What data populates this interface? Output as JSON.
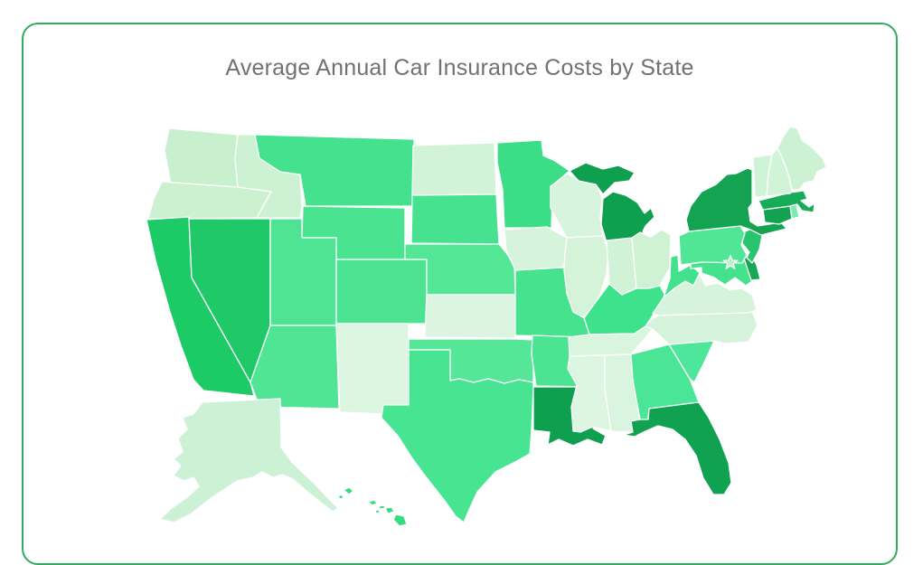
{
  "card": {
    "title": "Average Annual Car Insurance Costs by State"
  },
  "colors": {
    "card_border": "#2fad5d",
    "card_background": "#ffffff",
    "title_color": "#717171",
    "state_border": "#ffffff"
  },
  "chart_data": {
    "type": "heatmap",
    "subtype": "us-choropleth-map",
    "title": "Average Annual Car Insurance Costs by State",
    "region": "United States",
    "legend": "none",
    "values_labeled": false,
    "color_scale": {
      "lightest": "#ddf6e2",
      "darkest": "#0fa04f",
      "encoding": "darker green = higher shade level"
    },
    "dc": {
      "id": "DC",
      "name": "District of Columbia",
      "marker": "star",
      "color": "#bfeccd"
    },
    "states": [
      {
        "id": "WA",
        "name": "Washington",
        "shade_level": 2,
        "color": "#c9f0ce"
      },
      {
        "id": "OR",
        "name": "Oregon",
        "shade_level": 2,
        "color": "#cbf1d0"
      },
      {
        "id": "CA",
        "name": "California",
        "shade_level": 4,
        "color": "#1ccb66"
      },
      {
        "id": "NV",
        "name": "Nevada",
        "shade_level": 4,
        "color": "#1fc967"
      },
      {
        "id": "ID",
        "name": "Idaho",
        "shade_level": 2,
        "color": "#cdf2d3"
      },
      {
        "id": "MT",
        "name": "Montana",
        "shade_level": 3,
        "color": "#44e18e"
      },
      {
        "id": "WY",
        "name": "Wyoming",
        "shade_level": 3,
        "color": "#4ae390"
      },
      {
        "id": "UT",
        "name": "Utah",
        "shade_level": 3,
        "color": "#4ee493"
      },
      {
        "id": "CO",
        "name": "Colorado",
        "shade_level": 3,
        "color": "#4ce492"
      },
      {
        "id": "AZ",
        "name": "Arizona",
        "shade_level": 3,
        "color": "#4fe594"
      },
      {
        "id": "NM",
        "name": "New Mexico",
        "shade_level": 1,
        "color": "#ddf6e2"
      },
      {
        "id": "ND",
        "name": "North Dakota",
        "shade_level": 2,
        "color": "#d2f3d8"
      },
      {
        "id": "SD",
        "name": "South Dakota",
        "shade_level": 3,
        "color": "#47e290"
      },
      {
        "id": "NE",
        "name": "Nebraska",
        "shade_level": 3,
        "color": "#52e695"
      },
      {
        "id": "KS",
        "name": "Kansas",
        "shade_level": 1,
        "color": "#dbf5e0"
      },
      {
        "id": "OK",
        "name": "Oklahoma",
        "shade_level": 3,
        "color": "#55e797"
      },
      {
        "id": "TX",
        "name": "Texas",
        "shade_level": 3,
        "color": "#47e591"
      },
      {
        "id": "MN",
        "name": "Minnesota",
        "shade_level": 3,
        "color": "#3bdd87"
      },
      {
        "id": "IA",
        "name": "Iowa",
        "shade_level": 2,
        "color": "#d5f4db"
      },
      {
        "id": "MO",
        "name": "Missouri",
        "shade_level": 3,
        "color": "#45e38e"
      },
      {
        "id": "AR",
        "name": "Arkansas",
        "shade_level": 3,
        "color": "#4be492"
      },
      {
        "id": "LA",
        "name": "Louisiana",
        "shade_level": 5,
        "color": "#0fa04f"
      },
      {
        "id": "WI",
        "name": "Wisconsin",
        "shade_level": 2,
        "color": "#d7f4dc"
      },
      {
        "id": "IL",
        "name": "Illinois",
        "shade_level": 2,
        "color": "#d4f3d9"
      },
      {
        "id": "MI",
        "name": "Michigan",
        "shade_level": 5,
        "color": "#0fa04f"
      },
      {
        "id": "IN",
        "name": "Indiana",
        "shade_level": 2,
        "color": "#d0f2d6"
      },
      {
        "id": "OH",
        "name": "Ohio",
        "shade_level": 2,
        "color": "#cff2d5"
      },
      {
        "id": "KY",
        "name": "Kentucky",
        "shade_level": 3,
        "color": "#3fe28c"
      },
      {
        "id": "TN",
        "name": "Tennessee",
        "shade_level": 1,
        "color": "#daf5de"
      },
      {
        "id": "MS",
        "name": "Mississippi",
        "shade_level": 1,
        "color": "#dcf6e1"
      },
      {
        "id": "AL",
        "name": "Alabama",
        "shade_level": 1,
        "color": "#d9f5df"
      },
      {
        "id": "GA",
        "name": "Georgia",
        "shade_level": 3,
        "color": "#4ae596"
      },
      {
        "id": "FL",
        "name": "Florida",
        "shade_level": 5,
        "color": "#10a251"
      },
      {
        "id": "SC",
        "name": "South Carolina",
        "shade_level": 3,
        "color": "#4ee69a"
      },
      {
        "id": "NC",
        "name": "North Carolina",
        "shade_level": 2,
        "color": "#d4f3da"
      },
      {
        "id": "VA",
        "name": "Virginia",
        "shade_level": 2,
        "color": "#d6f4dc"
      },
      {
        "id": "WV",
        "name": "West Virginia",
        "shade_level": 3,
        "color": "#41e28b"
      },
      {
        "id": "MD",
        "name": "Maryland",
        "shade_level": 3,
        "color": "#44e28d"
      },
      {
        "id": "DE",
        "name": "Delaware",
        "shade_level": 5,
        "color": "#16a855"
      },
      {
        "id": "NJ",
        "name": "New Jersey",
        "shade_level": 4,
        "color": "#2bc46e"
      },
      {
        "id": "PA",
        "name": "Pennsylvania",
        "shade_level": 3,
        "color": "#50e695"
      },
      {
        "id": "NY",
        "name": "New York",
        "shade_level": 5,
        "color": "#13a351"
      },
      {
        "id": "CT",
        "name": "Connecticut",
        "shade_level": 5,
        "color": "#12a251"
      },
      {
        "id": "RI",
        "name": "Rhode Island",
        "shade_level": 2,
        "color": "#7bedb4"
      },
      {
        "id": "MA",
        "name": "Massachusetts",
        "shade_level": 4,
        "color": "#17ac58"
      },
      {
        "id": "VT",
        "name": "Vermont",
        "shade_level": 2,
        "color": "#cff3d6"
      },
      {
        "id": "NH",
        "name": "New Hampshire",
        "shade_level": 2,
        "color": "#d1f3d7"
      },
      {
        "id": "ME",
        "name": "Maine",
        "shade_level": 2,
        "color": "#cdf2d3"
      },
      {
        "id": "AK",
        "name": "Alaska",
        "shade_level": 2,
        "color": "#cdf1d4"
      },
      {
        "id": "HI",
        "name": "Hawaii",
        "shade_level": 3,
        "color": "#35dc80"
      }
    ]
  }
}
